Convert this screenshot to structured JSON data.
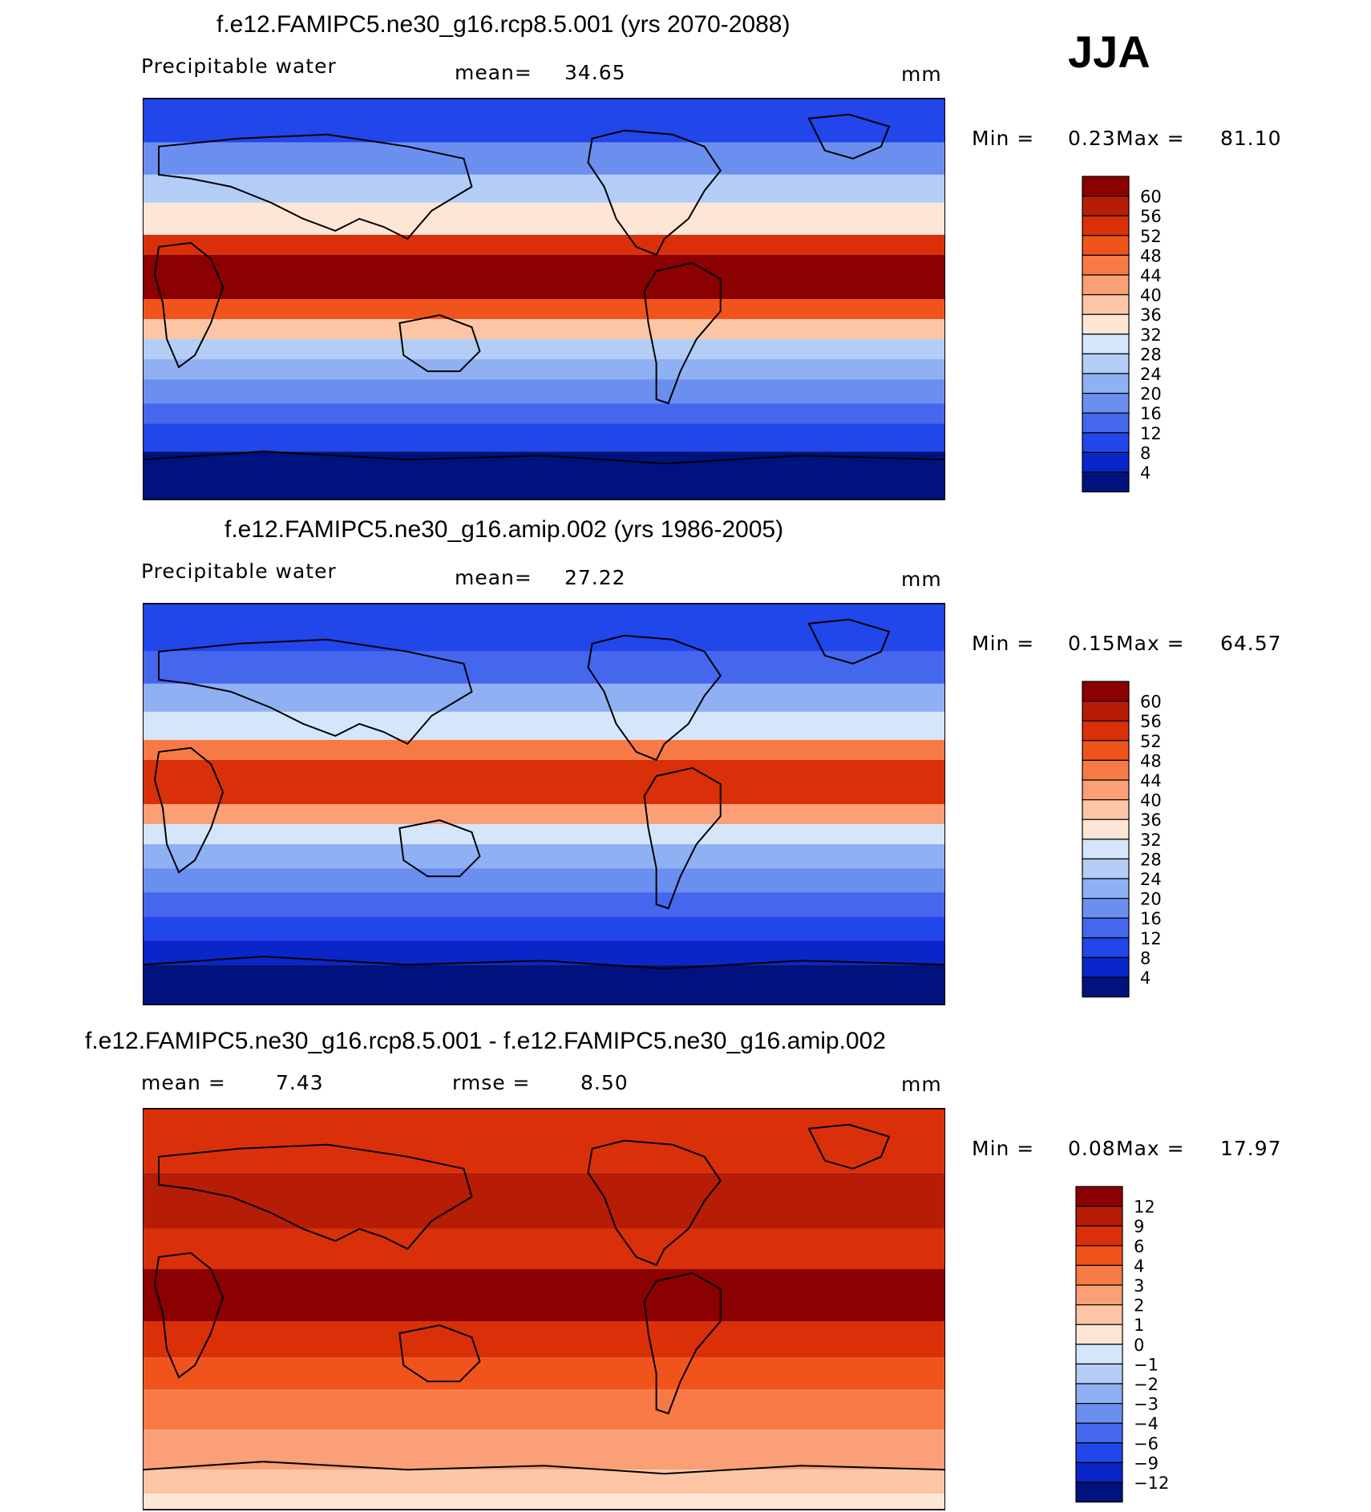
{
  "season": "JJA",
  "panels": [
    {
      "id": "future",
      "title": "f.e12.FAMIPC5.ne30_g16.rcp8.5.001 (yrs 2070-2088)",
      "field": "Precipitable water",
      "stat_label": "mean=",
      "stat_value": "34.65",
      "units": "mm",
      "min_label": "Min =",
      "min_value": "0.23",
      "max_label": "Max =",
      "max_value": "81.10",
      "scale_type": "abs",
      "levels": [
        "60",
        "56",
        "52",
        "48",
        "44",
        "40",
        "36",
        "32",
        "28",
        "24",
        "20",
        "16",
        "12",
        "8",
        "4"
      ],
      "colors": [
        "#8b0000",
        "#b71c07",
        "#d9300a",
        "#f0541c",
        "#f77a46",
        "#fa9f76",
        "#fcc6a6",
        "#fde6d6",
        "#d6e6fa",
        "#b3cdf7",
        "#8fb0f2",
        "#6b8fef",
        "#4467ee",
        "#2146ea",
        "#0a26c8",
        "#00127e"
      ]
    },
    {
      "id": "present",
      "title": "f.e12.FAMIPC5.ne30_g16.amip.002 (yrs 1986-2005)",
      "field": "Precipitable water",
      "stat_label": "mean=",
      "stat_value": "27.22",
      "units": "mm",
      "min_label": "Min =",
      "min_value": "0.15",
      "max_label": "Max =",
      "max_value": "64.57",
      "scale_type": "abs",
      "levels": [
        "60",
        "56",
        "52",
        "48",
        "44",
        "40",
        "36",
        "32",
        "28",
        "24",
        "20",
        "16",
        "12",
        "8",
        "4"
      ],
      "colors": [
        "#8b0000",
        "#b71c07",
        "#d9300a",
        "#f0541c",
        "#f77a46",
        "#fa9f76",
        "#fcc6a6",
        "#fde6d6",
        "#d6e6fa",
        "#b3cdf7",
        "#8fb0f2",
        "#6b8fef",
        "#4467ee",
        "#2146ea",
        "#0a26c8",
        "#00127e"
      ]
    },
    {
      "id": "diff",
      "title": "f.e12.FAMIPC5.ne30_g16.rcp8.5.001 - f.e12.FAMIPC5.ne30_g16.amip.002",
      "stat_label": "mean =",
      "stat_value": "7.43",
      "stat2_label": "rmse =",
      "stat2_value": "8.50",
      "units": "mm",
      "min_label": "Min =",
      "min_value": "0.08",
      "max_label": "Max =",
      "max_value": "17.97",
      "scale_type": "diff",
      "levels": [
        "12",
        "9",
        "6",
        "4",
        "3",
        "2",
        "1",
        "0",
        "−1",
        "−2",
        "−3",
        "−4",
        "−6",
        "−9",
        "−12"
      ],
      "colors": [
        "#8b0000",
        "#b71c07",
        "#d9300a",
        "#f0541c",
        "#f77a46",
        "#fa9f76",
        "#fcc6a6",
        "#fde6d6",
        "#d6e6fa",
        "#b3cdf7",
        "#8fb0f2",
        "#6b8fef",
        "#4467ee",
        "#2146ea",
        "#0a26c8",
        "#00127e"
      ]
    }
  ]
}
